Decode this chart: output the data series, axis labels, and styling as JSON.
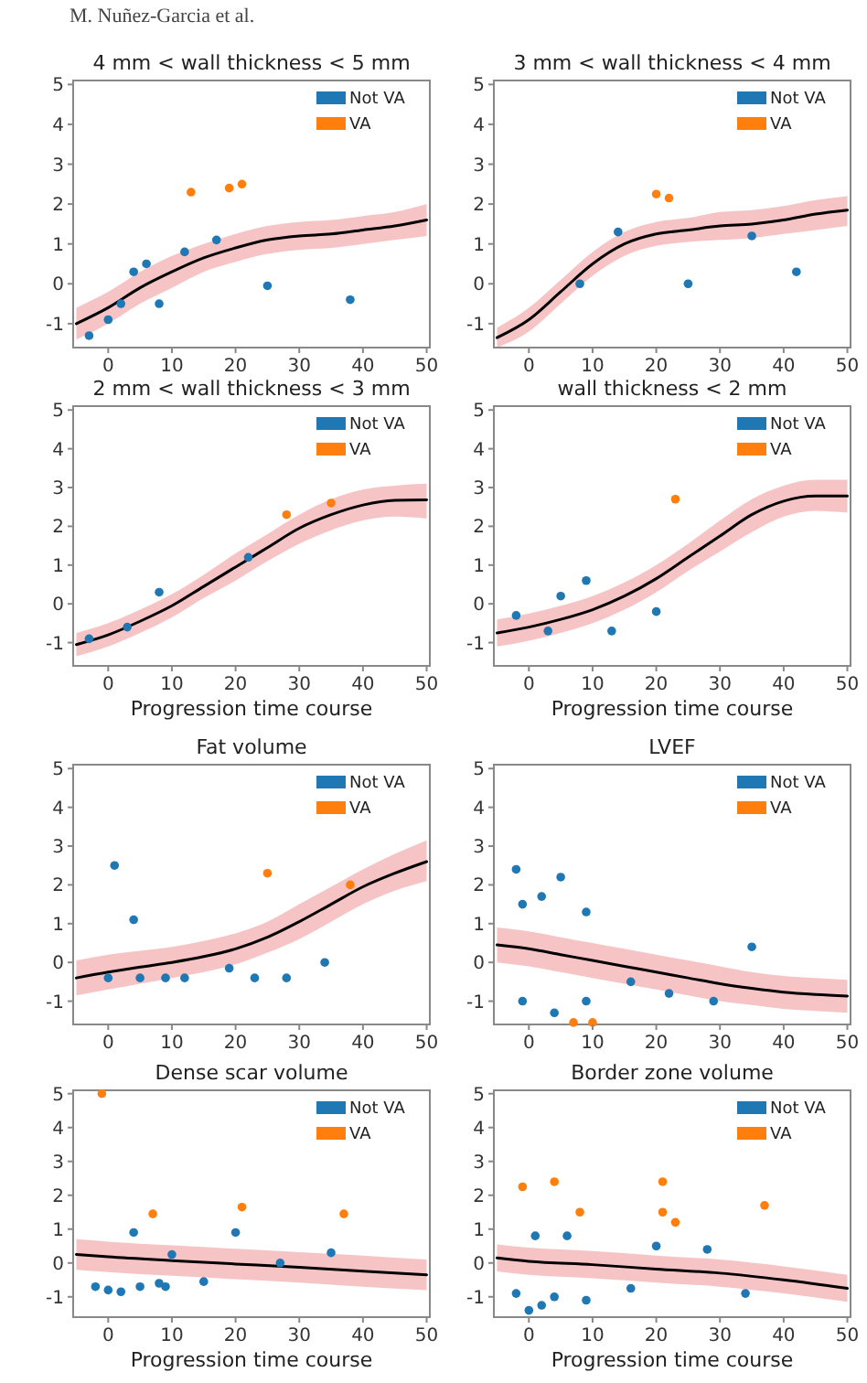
{
  "chart_data": [
    {
      "type": "line",
      "title": "4 mm < wall thickness < 5 mm",
      "annotations": [
        "M. Nuñez-Garcia et al."
      ],
      "xlim": [
        -5.5,
        50.5
      ],
      "ylim": [
        -1.6,
        5.1
      ],
      "xticks": [
        0,
        10,
        20,
        30,
        40,
        50
      ],
      "yticks": [
        -1,
        0,
        1,
        2,
        3,
        4,
        5
      ],
      "legend": "top right",
      "x": [
        -5,
        0,
        5,
        10,
        15,
        20,
        25,
        30,
        35,
        40,
        45,
        50
      ],
      "series": [
        {
          "color": "#000000",
          "values": [
            -1.0,
            -0.6,
            -0.1,
            0.3,
            0.65,
            0.9,
            1.1,
            1.2,
            1.25,
            1.35,
            1.45,
            1.6
          ],
          "lower": [
            -1.4,
            -1.0,
            -0.5,
            -0.1,
            0.3,
            0.55,
            0.75,
            0.85,
            0.9,
            1.0,
            1.1,
            1.2
          ],
          "upper": [
            -0.6,
            -0.2,
            0.3,
            0.7,
            1.0,
            1.25,
            1.45,
            1.55,
            1.6,
            1.7,
            1.8,
            2.0
          ]
        },
        {
          "type": "scatter",
          "name": "Not VA",
          "color": "#1f77b4",
          "x": [
            -3,
            0,
            2,
            4,
            6,
            8,
            12,
            17,
            25,
            38
          ],
          "values": [
            -1.3,
            -0.9,
            -0.5,
            0.3,
            0.5,
            -0.5,
            0.8,
            1.1,
            -0.05,
            -0.4
          ]
        },
        {
          "type": "scatter",
          "name": "VA",
          "color": "#ff7f0e",
          "x": [
            13,
            19,
            21
          ],
          "values": [
            2.3,
            2.4,
            2.5
          ]
        }
      ]
    },
    {
      "type": "line",
      "title": "3 mm < wall thickness < 4 mm",
      "xlim": [
        -5.5,
        50.5
      ],
      "ylim": [
        -1.6,
        5.1
      ],
      "xticks": [
        0,
        10,
        20,
        30,
        40,
        50
      ],
      "yticks": [
        -1,
        0,
        1,
        2,
        3,
        4,
        5
      ],
      "legend": "top right",
      "x": [
        -5,
        0,
        5,
        10,
        15,
        20,
        25,
        30,
        35,
        40,
        45,
        50
      ],
      "series": [
        {
          "color": "#000000",
          "values": [
            -1.35,
            -0.9,
            -0.2,
            0.5,
            1.0,
            1.25,
            1.35,
            1.45,
            1.5,
            1.6,
            1.75,
            1.85
          ],
          "lower": [
            -1.6,
            -1.2,
            -0.5,
            0.2,
            0.7,
            0.95,
            1.05,
            1.1,
            1.15,
            1.25,
            1.35,
            1.45
          ],
          "upper": [
            -1.1,
            -0.6,
            0.1,
            0.8,
            1.3,
            1.55,
            1.65,
            1.8,
            1.85,
            1.95,
            2.1,
            2.2
          ]
        },
        {
          "type": "scatter",
          "name": "Not VA",
          "color": "#1f77b4",
          "x": [
            8,
            14,
            25,
            35,
            42
          ],
          "values": [
            0.0,
            1.3,
            0.0,
            1.2,
            0.3
          ]
        },
        {
          "type": "scatter",
          "name": "VA",
          "color": "#ff7f0e",
          "x": [
            20,
            22
          ],
          "values": [
            2.25,
            2.15
          ]
        }
      ]
    },
    {
      "type": "line",
      "title": "2 mm < wall thickness < 3 mm",
      "xlabel": "Progression time course",
      "xlim": [
        -5.5,
        50.5
      ],
      "ylim": [
        -1.6,
        5.1
      ],
      "xticks": [
        0,
        10,
        20,
        30,
        40,
        50
      ],
      "yticks": [
        -1,
        0,
        1,
        2,
        3,
        4,
        5
      ],
      "legend": "top right",
      "x": [
        -5,
        0,
        5,
        10,
        15,
        20,
        25,
        30,
        35,
        40,
        45,
        50
      ],
      "series": [
        {
          "color": "#000000",
          "values": [
            -1.05,
            -0.8,
            -0.45,
            -0.05,
            0.45,
            0.95,
            1.45,
            1.95,
            2.3,
            2.55,
            2.67,
            2.68
          ],
          "lower": [
            -1.35,
            -1.1,
            -0.75,
            -0.35,
            0.15,
            0.6,
            1.1,
            1.55,
            1.9,
            2.15,
            2.25,
            2.2
          ],
          "upper": [
            -0.75,
            -0.5,
            -0.15,
            0.25,
            0.75,
            1.3,
            1.8,
            2.3,
            2.7,
            2.95,
            3.05,
            3.1
          ]
        },
        {
          "type": "scatter",
          "name": "Not VA",
          "color": "#1f77b4",
          "x": [
            -3,
            3,
            8,
            22
          ],
          "values": [
            -0.9,
            -0.6,
            0.3,
            1.2
          ]
        },
        {
          "type": "scatter",
          "name": "VA",
          "color": "#ff7f0e",
          "x": [
            28,
            35
          ],
          "values": [
            2.3,
            2.6
          ]
        }
      ]
    },
    {
      "type": "line",
      "title": "wall thickness < 2 mm",
      "xlabel": "Progression time course",
      "xlim": [
        -5.5,
        50.5
      ],
      "ylim": [
        -1.6,
        5.1
      ],
      "xticks": [
        0,
        10,
        20,
        30,
        40,
        50
      ],
      "yticks": [
        -1,
        0,
        1,
        2,
        3,
        4,
        5
      ],
      "legend": "top right",
      "x": [
        -5,
        0,
        5,
        10,
        15,
        20,
        25,
        30,
        35,
        40,
        45,
        50
      ],
      "series": [
        {
          "color": "#000000",
          "values": [
            -0.75,
            -0.6,
            -0.4,
            -0.15,
            0.2,
            0.65,
            1.2,
            1.75,
            2.3,
            2.65,
            2.78,
            2.78
          ],
          "lower": [
            -1.1,
            -0.95,
            -0.75,
            -0.5,
            -0.15,
            0.3,
            0.85,
            1.35,
            1.85,
            2.25,
            2.4,
            2.35
          ],
          "upper": [
            -0.4,
            -0.25,
            -0.05,
            0.2,
            0.55,
            1.0,
            1.55,
            2.15,
            2.7,
            3.05,
            3.2,
            3.2
          ]
        },
        {
          "type": "scatter",
          "name": "Not VA",
          "color": "#1f77b4",
          "x": [
            -2,
            3,
            5,
            9,
            13,
            20
          ],
          "values": [
            -0.3,
            -0.7,
            0.2,
            0.6,
            -0.7,
            -0.2
          ]
        },
        {
          "type": "scatter",
          "name": "VA",
          "color": "#ff7f0e",
          "x": [
            23
          ],
          "values": [
            2.7
          ]
        }
      ]
    },
    {
      "type": "line",
      "title": "Fat volume",
      "xlim": [
        -5.5,
        50.5
      ],
      "ylim": [
        -1.6,
        5.1
      ],
      "xticks": [
        0,
        10,
        20,
        30,
        40,
        50
      ],
      "yticks": [
        -1,
        0,
        1,
        2,
        3,
        4,
        5
      ],
      "legend": "top right",
      "x": [
        -5,
        0,
        5,
        10,
        15,
        20,
        25,
        30,
        35,
        40,
        45,
        50
      ],
      "series": [
        {
          "color": "#000000",
          "values": [
            -0.4,
            -0.25,
            -0.12,
            0.0,
            0.15,
            0.35,
            0.65,
            1.05,
            1.5,
            1.95,
            2.3,
            2.6
          ],
          "lower": [
            -0.85,
            -0.7,
            -0.55,
            -0.4,
            -0.25,
            -0.05,
            0.25,
            0.6,
            1.05,
            1.5,
            1.85,
            2.1
          ],
          "upper": [
            0.05,
            0.2,
            0.3,
            0.4,
            0.55,
            0.75,
            1.05,
            1.5,
            1.95,
            2.4,
            2.8,
            3.15
          ]
        },
        {
          "type": "scatter",
          "name": "Not VA",
          "color": "#1f77b4",
          "x": [
            0,
            1,
            4,
            5,
            9,
            12,
            19,
            23,
            28,
            34
          ],
          "values": [
            -0.4,
            2.5,
            1.1,
            -0.4,
            -0.4,
            -0.4,
            -0.15,
            -0.4,
            -0.4,
            0.0
          ]
        },
        {
          "type": "scatter",
          "name": "VA",
          "color": "#ff7f0e",
          "x": [
            25,
            38
          ],
          "values": [
            2.3,
            2.0
          ]
        }
      ]
    },
    {
      "type": "line",
      "title": "LVEF",
      "xlim": [
        -5.5,
        50.5
      ],
      "ylim": [
        -1.6,
        5.1
      ],
      "xticks": [
        0,
        10,
        20,
        30,
        40,
        50
      ],
      "yticks": [
        -1,
        0,
        1,
        2,
        3,
        4,
        5
      ],
      "legend": "top right",
      "x": [
        -5,
        0,
        5,
        10,
        15,
        20,
        25,
        30,
        35,
        40,
        45,
        50
      ],
      "series": [
        {
          "color": "#000000",
          "values": [
            0.45,
            0.35,
            0.2,
            0.05,
            -0.1,
            -0.25,
            -0.4,
            -0.55,
            -0.67,
            -0.77,
            -0.83,
            -0.87
          ],
          "lower": [
            0.0,
            -0.1,
            -0.25,
            -0.4,
            -0.55,
            -0.7,
            -0.85,
            -1.0,
            -1.1,
            -1.2,
            -1.25,
            -1.3
          ],
          "upper": [
            0.9,
            0.8,
            0.65,
            0.5,
            0.35,
            0.2,
            0.05,
            -0.1,
            -0.25,
            -0.35,
            -0.4,
            -0.45
          ]
        },
        {
          "type": "scatter",
          "name": "Not VA",
          "color": "#1f77b4",
          "x": [
            -2,
            -1,
            2,
            5,
            9,
            -1,
            4,
            9,
            16,
            22,
            29,
            35
          ],
          "values": [
            2.4,
            1.5,
            1.7,
            2.2,
            1.3,
            -1.0,
            -1.3,
            -1.0,
            -0.5,
            -0.8,
            -1.0,
            0.4
          ]
        },
        {
          "type": "scatter",
          "name": "VA",
          "color": "#ff7f0e",
          "x": [
            7,
            10
          ],
          "values": [
            -1.55,
            -1.55
          ]
        }
      ]
    },
    {
      "type": "line",
      "title": "Dense scar volume",
      "xlabel": "Progression time course",
      "xlim": [
        -5.5,
        50.5
      ],
      "ylim": [
        -1.6,
        5.1
      ],
      "xticks": [
        0,
        10,
        20,
        30,
        40,
        50
      ],
      "yticks": [
        -1,
        0,
        1,
        2,
        3,
        4,
        5
      ],
      "legend": "top right",
      "x": [
        -5,
        0,
        10,
        20,
        30,
        40,
        50
      ],
      "series": [
        {
          "color": "#000000",
          "values": [
            0.25,
            0.18,
            0.07,
            -0.03,
            -0.13,
            -0.24,
            -0.35
          ],
          "lower": [
            -0.2,
            -0.27,
            -0.38,
            -0.48,
            -0.58,
            -0.7,
            -0.8
          ],
          "upper": [
            0.7,
            0.63,
            0.52,
            0.42,
            0.32,
            0.22,
            0.1
          ]
        },
        {
          "type": "scatter",
          "name": "Not VA",
          "color": "#1f77b4",
          "x": [
            -2,
            0,
            2,
            4,
            5,
            8,
            9,
            10,
            15,
            20,
            27,
            35
          ],
          "values": [
            -0.7,
            -0.8,
            -0.85,
            0.9,
            -0.7,
            -0.6,
            -0.7,
            0.25,
            -0.55,
            0.9,
            0.0,
            0.3
          ]
        },
        {
          "type": "scatter",
          "name": "VA",
          "color": "#ff7f0e",
          "x": [
            -1,
            7,
            21,
            37
          ],
          "values": [
            5.0,
            1.45,
            1.65,
            1.45
          ]
        }
      ]
    },
    {
      "type": "line",
      "title": "Border zone volume",
      "xlabel": "Progression time course",
      "xlim": [
        -5.5,
        50.5
      ],
      "ylim": [
        -1.6,
        5.1
      ],
      "xticks": [
        0,
        10,
        20,
        30,
        40,
        50
      ],
      "yticks": [
        -1,
        0,
        1,
        2,
        3,
        4,
        5
      ],
      "legend": "top right",
      "x": [
        -5,
        0,
        10,
        20,
        30,
        40,
        50
      ],
      "series": [
        {
          "color": "#000000",
          "values": [
            0.15,
            0.05,
            -0.05,
            -0.18,
            -0.3,
            -0.5,
            -0.75
          ],
          "lower": [
            -0.25,
            -0.35,
            -0.45,
            -0.58,
            -0.7,
            -0.9,
            -1.15
          ],
          "upper": [
            0.55,
            0.45,
            0.35,
            0.22,
            0.1,
            -0.1,
            -0.35
          ]
        },
        {
          "type": "scatter",
          "name": "Not VA",
          "color": "#1f77b4",
          "x": [
            -2,
            0,
            1,
            2,
            4,
            6,
            9,
            16,
            20,
            28,
            34
          ],
          "values": [
            -0.9,
            -1.4,
            0.8,
            -1.25,
            -1.0,
            0.8,
            -1.1,
            -0.75,
            0.5,
            0.4,
            -0.9
          ]
        },
        {
          "type": "scatter",
          "name": "VA",
          "color": "#ff7f0e",
          "x": [
            -1,
            4,
            8,
            21,
            21,
            23,
            37
          ],
          "values": [
            2.25,
            2.4,
            1.5,
            2.4,
            1.5,
            1.2,
            1.7
          ]
        }
      ]
    }
  ]
}
